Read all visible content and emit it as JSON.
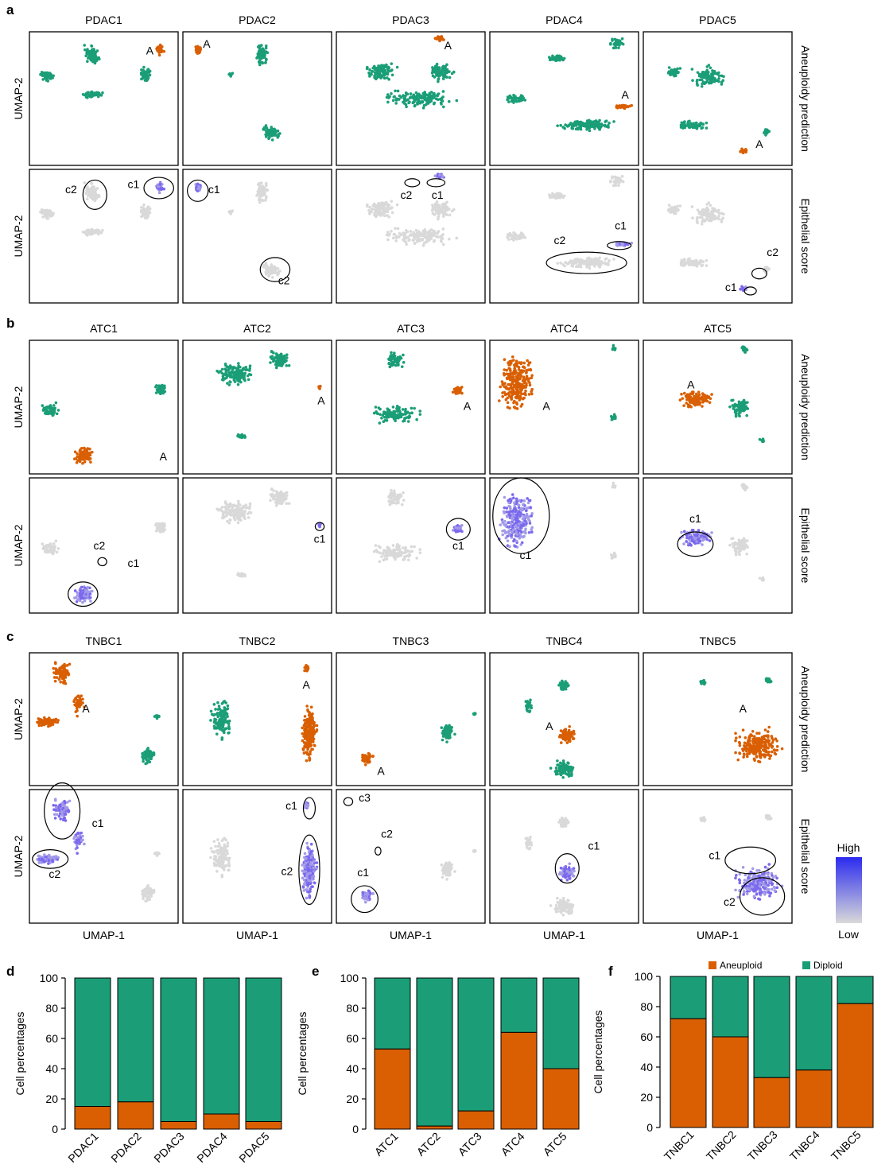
{
  "colors": {
    "aneuploid": "#d95f02",
    "diploid": "#1b9e77",
    "score_high": "#2b2bf0",
    "score_low": "#d9d9d9",
    "frame": "#000000"
  },
  "umap": {
    "x_label": "UMAP-1",
    "y_label": "UMAP-2",
    "row_labels": {
      "aneuploidy": "Aneuploidy prediction",
      "epithelial": "Epithelial score"
    },
    "legend": {
      "high": "High",
      "low": "Low"
    },
    "panels": [
      {
        "panel": "a",
        "samples": [
          {
            "name": "PDAC1",
            "aneu_label": "A",
            "clusters": [
              "c2",
              "c1"
            ]
          },
          {
            "name": "PDAC2",
            "aneu_label": "A",
            "clusters": [
              "c1",
              "c2"
            ]
          },
          {
            "name": "PDAC3",
            "aneu_label": "A",
            "clusters": [
              "c2",
              "c1"
            ]
          },
          {
            "name": "PDAC4",
            "aneu_label": "A",
            "clusters": [
              "c2",
              "c1"
            ]
          },
          {
            "name": "PDAC5",
            "aneu_label": "A",
            "clusters": [
              "c2",
              "c1"
            ]
          }
        ]
      },
      {
        "panel": "b",
        "samples": [
          {
            "name": "ATC1",
            "aneu_label": "A",
            "clusters": [
              "c2",
              "c1"
            ]
          },
          {
            "name": "ATC2",
            "aneu_label": "A",
            "clusters": [
              "c1"
            ]
          },
          {
            "name": "ATC3",
            "aneu_label": "A",
            "clusters": [
              "c1"
            ]
          },
          {
            "name": "ATC4",
            "aneu_label": "A",
            "clusters": [
              "c1"
            ]
          },
          {
            "name": "ATC5",
            "aneu_label": "A",
            "clusters": [
              "c1"
            ]
          }
        ]
      },
      {
        "panel": "c",
        "samples": [
          {
            "name": "TNBC1",
            "aneu_label": "A",
            "clusters": [
              "c1",
              "c2"
            ]
          },
          {
            "name": "TNBC2",
            "aneu_label": "A",
            "clusters": [
              "c1",
              "c2"
            ]
          },
          {
            "name": "TNBC3",
            "aneu_label": "A",
            "clusters": [
              "c3",
              "c2",
              "c1"
            ]
          },
          {
            "name": "TNBC4",
            "aneu_label": "A",
            "clusters": [
              "c1"
            ]
          },
          {
            "name": "TNBC5",
            "aneu_label": "A",
            "clusters": [
              "c1",
              "c2"
            ]
          }
        ]
      }
    ]
  },
  "chart_data": [
    {
      "panel": "d",
      "type": "bar",
      "stacked": true,
      "categories": [
        "PDAC1",
        "PDAC2",
        "PDAC3",
        "PDAC4",
        "PDAC5"
      ],
      "series": [
        {
          "name": "Aneuploid",
          "values": [
            15,
            18,
            5,
            10,
            5
          ]
        },
        {
          "name": "Diploid",
          "values": [
            85,
            82,
            95,
            90,
            95
          ]
        }
      ],
      "ylabel": "Cell percentages",
      "ylim": [
        0,
        100
      ],
      "yticks": [
        "0",
        "20",
        "40",
        "60",
        "80",
        "100"
      ]
    },
    {
      "panel": "e",
      "type": "bar",
      "stacked": true,
      "categories": [
        "ATC1",
        "ATC2",
        "ATC3",
        "ATC4",
        "ATC5"
      ],
      "series": [
        {
          "name": "Aneuploid",
          "values": [
            53,
            2,
            12,
            64,
            40
          ]
        },
        {
          "name": "Diploid",
          "values": [
            47,
            98,
            88,
            36,
            60
          ]
        }
      ],
      "ylabel": "Cell percentages",
      "ylim": [
        0,
        100
      ],
      "yticks": [
        "0",
        "20",
        "40",
        "60",
        "80",
        "100"
      ]
    },
    {
      "panel": "f",
      "type": "bar",
      "stacked": true,
      "categories": [
        "TNBC1",
        "TNBC2",
        "TNBC3",
        "TNBC4",
        "TNBC5"
      ],
      "series": [
        {
          "name": "Aneuploid",
          "values": [
            72,
            60,
            33,
            38,
            82
          ]
        },
        {
          "name": "Diploid",
          "values": [
            28,
            40,
            67,
            62,
            18
          ]
        }
      ],
      "ylabel": "Cell percentages",
      "ylim": [
        0,
        100
      ],
      "yticks": [
        "0",
        "20",
        "40",
        "60",
        "80",
        "100"
      ],
      "legend": [
        "Aneuploid",
        "Diploid"
      ],
      "legend_position": "top"
    }
  ]
}
